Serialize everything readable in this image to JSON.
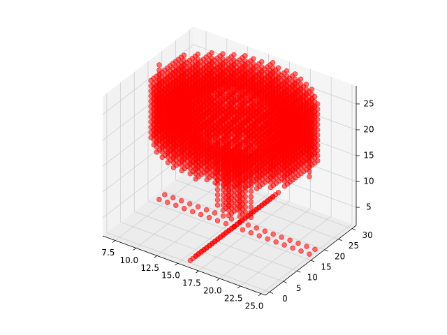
{
  "chart_data": {
    "type": "scatter",
    "projection": "3d",
    "title": "",
    "xlabel": "",
    "ylabel": "",
    "zlabel": "",
    "grid": true,
    "marker_color": "#ff0000",
    "pane_color": "#f2f2f2",
    "xlim": [
      6.0,
      25.5
    ],
    "ylim": [
      -1.5,
      31.5
    ],
    "zlim": [
      1.5,
      28.5
    ],
    "x_ticks": [
      7.5,
      10.0,
      12.5,
      15.0,
      17.5,
      20.0,
      22.5,
      25.0
    ],
    "x_tick_labels": [
      "7.5",
      "10.0",
      "12.5",
      "15.0",
      "17.5",
      "20.0",
      "22.5",
      "25.0"
    ],
    "y_ticks": [
      0,
      5,
      10,
      15,
      20,
      25,
      30
    ],
    "y_tick_labels": [
      "0",
      "5",
      "10",
      "15",
      "20",
      "25",
      "30"
    ],
    "z_ticks": [
      5,
      10,
      15,
      20,
      25
    ],
    "z_tick_labels": [
      "5",
      "10",
      "15",
      "20",
      "25"
    ],
    "shape": {
      "description_free": true,
      "canopy": {
        "center_x": 16,
        "center_y": 16,
        "radius_x": 9,
        "radius_y": 14,
        "z_min": 17,
        "z_max": 28
      },
      "stem": {
        "center_x": 16,
        "center_y": 16,
        "radius": 2,
        "z_min": 5,
        "z_max": 17
      },
      "legs": [
        {
          "x": [
            7,
            16
          ],
          "y": [
            16,
            16
          ],
          "z": 2
        },
        {
          "x": [
            16,
            25
          ],
          "y": [
            16,
            16
          ],
          "z": 2
        },
        {
          "x": [
            16,
            16
          ],
          "y": [
            0,
            16
          ],
          "z": 2
        },
        {
          "x": [
            16,
            16
          ],
          "y": [
            16,
            30
          ],
          "z": 2
        }
      ]
    }
  }
}
